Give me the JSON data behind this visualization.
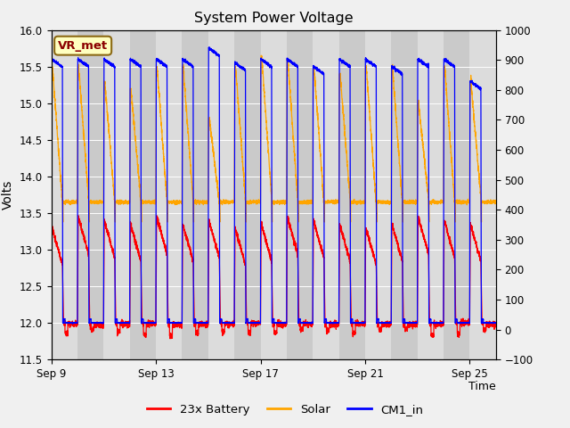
{
  "title": "System Power Voltage",
  "ylabel_left": "Volts",
  "xlabel": "Time",
  "ylim_left": [
    11.5,
    16.0
  ],
  "ylim_right": [
    -100,
    1000
  ],
  "xtick_labels": [
    "Sep 9",
    "Sep 13",
    "Sep 17",
    "Sep 21",
    "Sep 25"
  ],
  "annotation": "VR_met",
  "bg_color": "#f0f0f0",
  "plot_bg_light": "#e8e8e8",
  "plot_bg_dark": "#d0d0d0",
  "legend_entries": [
    "23x Battery",
    "Solar",
    "CM1_in"
  ],
  "legend_colors": [
    "red",
    "orange",
    "blue"
  ],
  "total_days": 17.0,
  "num_cycles": 17,
  "yticks_left": [
    11.5,
    12.0,
    12.5,
    13.0,
    13.5,
    14.0,
    14.5,
    15.0,
    15.5,
    16.0
  ],
  "yticks_right": [
    -100,
    0,
    100,
    200,
    300,
    400,
    500,
    600,
    700,
    800,
    900,
    1000
  ]
}
